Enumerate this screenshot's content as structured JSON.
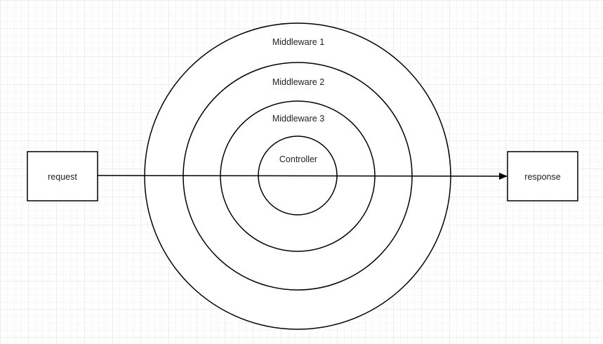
{
  "diagram": {
    "rings": [
      {
        "id": "middleware-1",
        "label": "Middleware 1"
      },
      {
        "id": "middleware-2",
        "label": "Middleware 2"
      },
      {
        "id": "middleware-3",
        "label": "Middleware 3"
      },
      {
        "id": "controller",
        "label": "Controller"
      }
    ],
    "request_label": "request",
    "response_label": "response",
    "colors": {
      "stroke": "#000000",
      "fill": "#ffffff",
      "grid": "#ededed"
    }
  }
}
